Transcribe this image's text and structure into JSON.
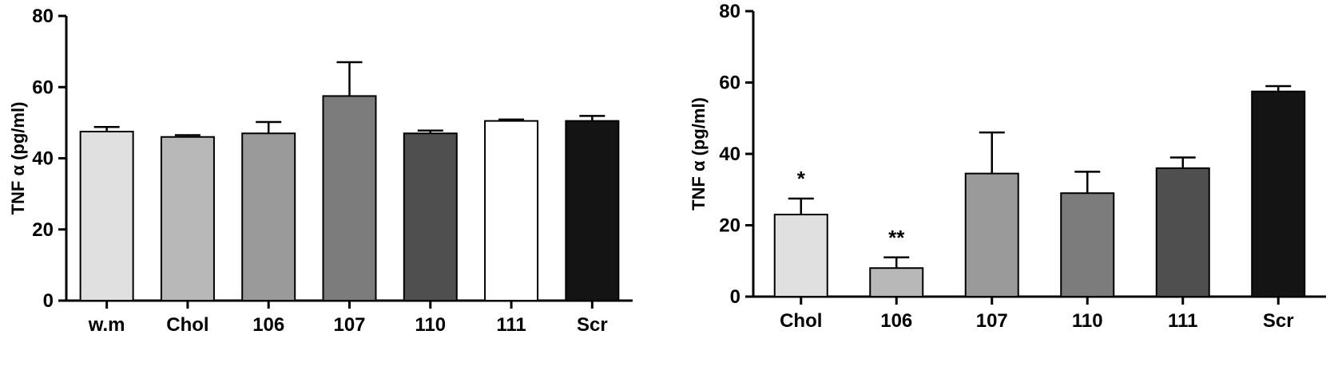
{
  "chart_data": [
    {
      "type": "bar",
      "title": "",
      "xlabel": "",
      "ylabel": "TNF α (pg/ml)",
      "ylim": [
        0,
        80
      ],
      "yticks": [
        0,
        20,
        40,
        60,
        80
      ],
      "grid": false,
      "categories": [
        "w.m",
        "Chol",
        "106",
        "107",
        "110",
        "111",
        "Scr"
      ],
      "values": [
        47.5,
        46,
        47,
        57.5,
        47,
        50.5,
        50.5
      ],
      "errors": [
        1.3,
        0.5,
        3.2,
        9.5,
        0.8,
        0.4,
        1.4
      ],
      "colors": [
        "#e0e0e0",
        "#b8b8b8",
        "#9a9a9a",
        "#7b7b7b",
        "#4f4f4f",
        "#ffffff",
        "#141414"
      ],
      "annotations": [
        "",
        "",
        "",
        "",
        "",
        "",
        ""
      ]
    },
    {
      "type": "bar",
      "title": "",
      "xlabel": "",
      "ylabel": "TNF α (pg/ml)",
      "ylim": [
        0,
        80
      ],
      "yticks": [
        0,
        20,
        40,
        60,
        80
      ],
      "grid": false,
      "categories": [
        "Chol",
        "106",
        "107",
        "110",
        "111",
        "Scr"
      ],
      "values": [
        23,
        8,
        34.5,
        29,
        36,
        57.5
      ],
      "errors": [
        4.5,
        3,
        11.5,
        6,
        3,
        1.5
      ],
      "colors": [
        "#e0e0e0",
        "#b8b8b8",
        "#9a9a9a",
        "#7b7b7b",
        "#4f4f4f",
        "#141414"
      ],
      "annotations": [
        "*",
        "**",
        "",
        "",
        "",
        ""
      ]
    }
  ]
}
